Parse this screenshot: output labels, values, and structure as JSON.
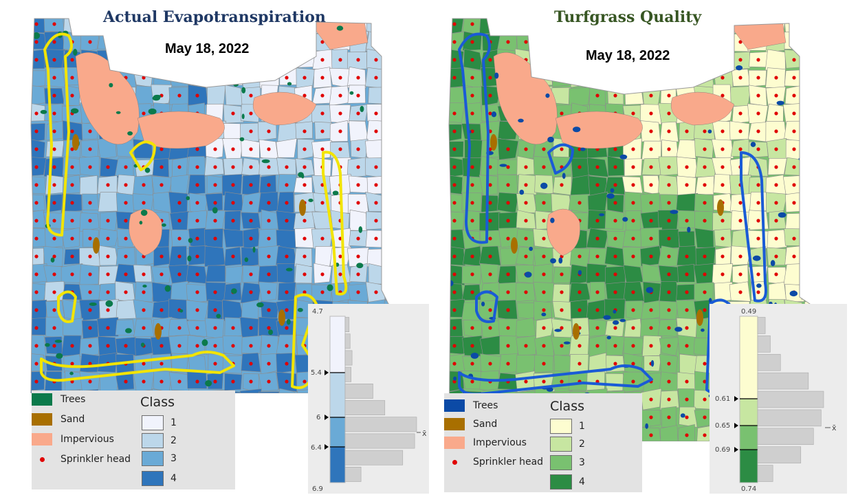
{
  "left_panel": {
    "title": "Actual Evapotranspiration",
    "title_color": "#1f3864",
    "date": "May 18, 2022",
    "outline_color": "#f2e400",
    "legend": {
      "items": [
        {
          "label": "Trees",
          "color": "#0b7a4b",
          "kind": "swatch"
        },
        {
          "label": "Sand",
          "color": "#a86f00",
          "kind": "swatch"
        },
        {
          "label": "Impervious",
          "color": "#f9a98b",
          "kind": "swatch"
        },
        {
          "label": "Sprinkler head",
          "color": "#e00000",
          "kind": "dot"
        }
      ],
      "class_title": "Class",
      "classes": [
        {
          "label": "1",
          "color": "#f1f3fc"
        },
        {
          "label": "2",
          "color": "#bcd7ea"
        },
        {
          "label": "3",
          "color": "#6aaad6"
        },
        {
          "label": "4",
          "color": "#2f75bb"
        }
      ]
    },
    "histogram": {
      "min_label": "4.7",
      "max_label": "6.9",
      "breaks": [
        "5.4",
        "6",
        "6.4"
      ],
      "mean_label": "x̄",
      "bar_counts": [
        4,
        5,
        7,
        6,
        28,
        40,
        72,
        70,
        58,
        16
      ]
    }
  },
  "right_panel": {
    "title": "Turfgrass Quality",
    "title_color": "#375623",
    "date": "May 18, 2022",
    "outline_color": "#1a5bd6",
    "legend": {
      "items": [
        {
          "label": "Trees",
          "color": "#0b4aa6",
          "kind": "swatch"
        },
        {
          "label": "Sand",
          "color": "#a86f00",
          "kind": "swatch"
        },
        {
          "label": "Impervious",
          "color": "#f9a98b",
          "kind": "swatch"
        },
        {
          "label": "Sprinkler head",
          "color": "#e00000",
          "kind": "dot"
        }
      ],
      "class_title": "Class",
      "classes": [
        {
          "label": "1",
          "color": "#fdfdd0"
        },
        {
          "label": "2",
          "color": "#c7e6a1"
        },
        {
          "label": "3",
          "color": "#79c170"
        },
        {
          "label": "4",
          "color": "#2c8c44"
        }
      ]
    },
    "histogram": {
      "min_label": "0.49",
      "max_label": "0.74",
      "breaks": [
        "0.61",
        "0.65",
        "0.69"
      ],
      "mean_label": "x̄",
      "bar_counts": [
        6,
        10,
        18,
        40,
        52,
        50,
        44,
        34,
        12
      ]
    }
  }
}
